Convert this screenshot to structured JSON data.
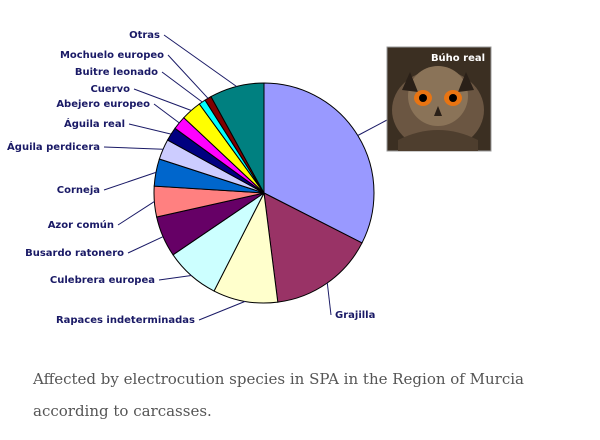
{
  "chart_data": {
    "type": "pie",
    "categories": [
      "Búho real",
      "Grajilla",
      "Rapaces indeterminadas",
      "Culebrera europea",
      "Busardo ratonero",
      "Azor común",
      "Corneja",
      "Águila perdicera",
      "Águila real",
      "Abejero europeo",
      "Cuervo",
      "Buitre leonado",
      "Mochuelo europeo",
      "Otras"
    ],
    "values": [
      32.5,
      15.5,
      9.5,
      8.0,
      6.0,
      4.5,
      4.0,
      3.0,
      2.0,
      2.0,
      3.0,
      1.0,
      1.0,
      8.0
    ],
    "colors": [
      "#9999ff",
      "#993366",
      "#ffffcc",
      "#ccffff",
      "#660066",
      "#ff8080",
      "#0066cc",
      "#ccccff",
      "#000080",
      "#ff00ff",
      "#ffff00",
      "#00ffff",
      "#800000",
      "#008080"
    ],
    "labels": [
      "Grajilla",
      "Rapaces indeterminadas",
      "Culebrera europea",
      "Busardo ratonero",
      "Azor común",
      "Corneja",
      "Águila perdicera",
      "Águila real",
      "Abejero europeo",
      "Cuervo",
      "Buitre leonado",
      "Mochuelo europeo",
      "Otras"
    ],
    "photo_label": "Búho real"
  },
  "caption": "Affected by electrocution species in SPA in the Region of Murcia according to carcasses."
}
